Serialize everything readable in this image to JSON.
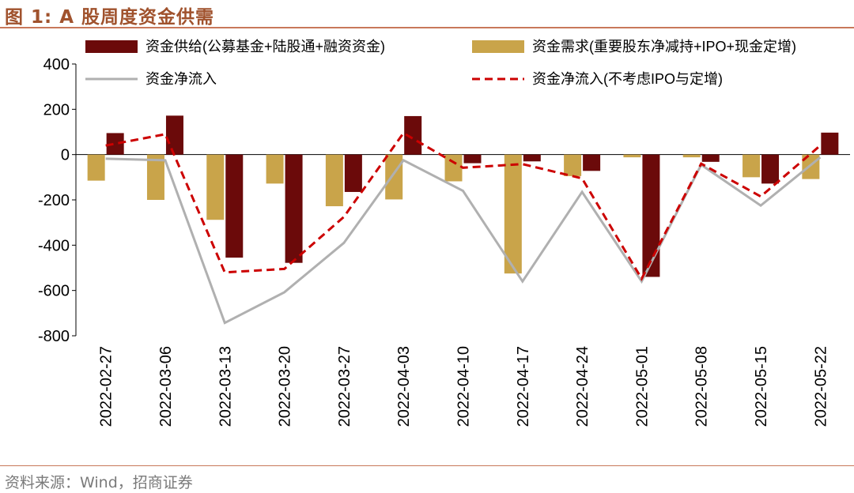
{
  "figure": {
    "title": "图 1:  A 股周度资金供需",
    "source": "资料来源：Wind，招商证券"
  },
  "chart_data": {
    "type": "bar",
    "categories": [
      "2022-02-27",
      "2022-03-06",
      "2022-03-13",
      "2022-03-20",
      "2022-03-27",
      "2022-04-03",
      "2022-04-10",
      "2022-04-17",
      "2022-04-24",
      "2022-05-01",
      "2022-05-08",
      "2022-05-15",
      "2022-05-22"
    ],
    "ylim": [
      -800,
      400
    ],
    "yticks": [
      400,
      200,
      0,
      -200,
      -400,
      -600,
      -800
    ],
    "xlabel": "",
    "ylabel": "",
    "series": [
      {
        "name": "资金供给(公募基金+陆股通+融资资金)",
        "kind": "bar",
        "color": "#6b0a0a",
        "values": [
          95,
          172,
          -455,
          -478,
          -165,
          170,
          -38,
          -30,
          -72,
          -540,
          -32,
          -128,
          97
        ]
      },
      {
        "name": "资金需求(重要股东净减持+IPO+现金定增)",
        "kind": "bar",
        "color": "#c9a44a",
        "values": [
          -115,
          -200,
          -288,
          -128,
          -228,
          -198,
          -118,
          -525,
          -95,
          -12,
          -12,
          -100,
          -108
        ]
      },
      {
        "name": "资金净流入",
        "kind": "line",
        "color": "#b0b0b0",
        "values": [
          -18,
          -25,
          -743,
          -608,
          -390,
          -25,
          -160,
          -560,
          -165,
          -560,
          -45,
          -225,
          -12
        ]
      },
      {
        "name": "资金净流入(不考虑IPO与定增)",
        "kind": "dashed",
        "color": "#cc0000",
        "values": [
          40,
          90,
          -520,
          -505,
          -275,
          95,
          -58,
          -42,
          -105,
          -548,
          -40,
          -185,
          40
        ]
      }
    ]
  }
}
